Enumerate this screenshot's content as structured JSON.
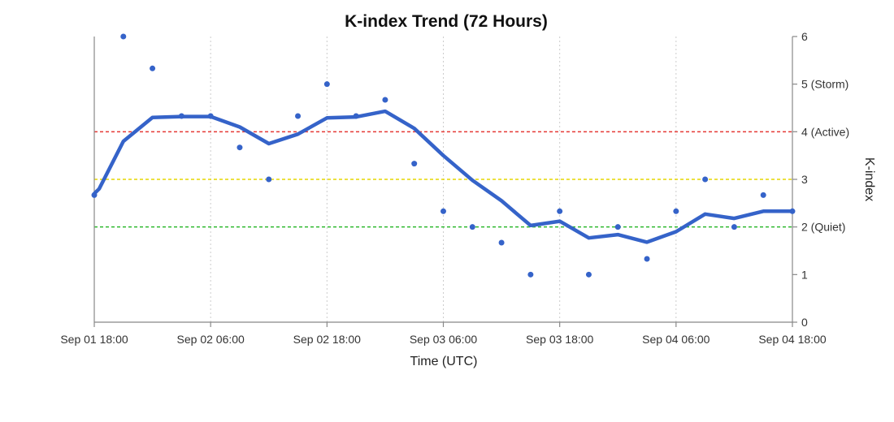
{
  "chart_data": {
    "type": "line",
    "title": "K-index Trend (72 Hours)",
    "xlabel": "Time (UTC)",
    "ylabel": "K-index",
    "x_range_hours": [
      0,
      72
    ],
    "ylim": [
      0,
      6
    ],
    "y_axis_side": "right",
    "x_ticks": [
      {
        "hour": 0,
        "label": "Sep 01 18:00"
      },
      {
        "hour": 12,
        "label": "Sep 02 06:00"
      },
      {
        "hour": 24,
        "label": "Sep 02 18:00"
      },
      {
        "hour": 36,
        "label": "Sep 03 06:00"
      },
      {
        "hour": 48,
        "label": "Sep 03 18:00"
      },
      {
        "hour": 60,
        "label": "Sep 04 06:00"
      },
      {
        "hour": 72,
        "label": "Sep 04 18:00"
      }
    ],
    "y_ticks": [
      {
        "value": 0,
        "label": "0"
      },
      {
        "value": 1,
        "label": "1"
      },
      {
        "value": 2,
        "label": "2 (Quiet)"
      },
      {
        "value": 3,
        "label": "3"
      },
      {
        "value": 4,
        "label": "4 (Active)"
      },
      {
        "value": 5,
        "label": "5 (Storm)"
      },
      {
        "value": 6,
        "label": "6"
      }
    ],
    "reference_lines": [
      {
        "value": 4,
        "color": "#e53935",
        "style": "dashed"
      },
      {
        "value": 3,
        "color": "#e6d700",
        "style": "dashed"
      },
      {
        "value": 2,
        "color": "#2eb82e",
        "style": "dashed"
      }
    ],
    "grid": {
      "vertical": true,
      "horizontal": false
    },
    "series": [
      {
        "kind": "scatter",
        "color": "#3563c9",
        "points": [
          [
            0,
            2.67
          ],
          [
            3,
            6.0
          ],
          [
            6,
            5.33
          ],
          [
            9,
            4.33
          ],
          [
            12,
            4.33
          ],
          [
            15,
            3.67
          ],
          [
            18,
            3.0
          ],
          [
            21,
            4.33
          ],
          [
            24,
            5.0
          ],
          [
            27,
            4.33
          ],
          [
            30,
            4.67
          ],
          [
            33,
            3.33
          ],
          [
            36,
            2.33
          ],
          [
            39,
            2.0
          ],
          [
            42,
            1.67
          ],
          [
            45,
            1.0
          ],
          [
            48,
            2.33
          ],
          [
            51,
            1.0
          ],
          [
            54,
            2.0
          ],
          [
            57,
            1.33
          ],
          [
            60,
            2.33
          ],
          [
            63,
            3.0
          ],
          [
            66,
            2.0
          ],
          [
            69,
            2.67
          ],
          [
            72,
            2.33
          ]
        ]
      },
      {
        "kind": "line",
        "color": "#3563c9",
        "points": [
          [
            0,
            2.7
          ],
          [
            0.5,
            2.8
          ],
          [
            3,
            3.8
          ],
          [
            6,
            4.3
          ],
          [
            9,
            4.32
          ],
          [
            12,
            4.32
          ],
          [
            15,
            4.1
          ],
          [
            18,
            3.75
          ],
          [
            21,
            3.95
          ],
          [
            24,
            4.29
          ],
          [
            27,
            4.31
          ],
          [
            30,
            4.43
          ],
          [
            33,
            4.07
          ],
          [
            36,
            3.5
          ],
          [
            39,
            2.98
          ],
          [
            42,
            2.55
          ],
          [
            45,
            2.03
          ],
          [
            48,
            2.12
          ],
          [
            51,
            1.77
          ],
          [
            54,
            1.84
          ],
          [
            57,
            1.68
          ],
          [
            60,
            1.9
          ],
          [
            63,
            2.27
          ],
          [
            66,
            2.18
          ],
          [
            69,
            2.33
          ],
          [
            72,
            2.33
          ]
        ]
      }
    ]
  }
}
